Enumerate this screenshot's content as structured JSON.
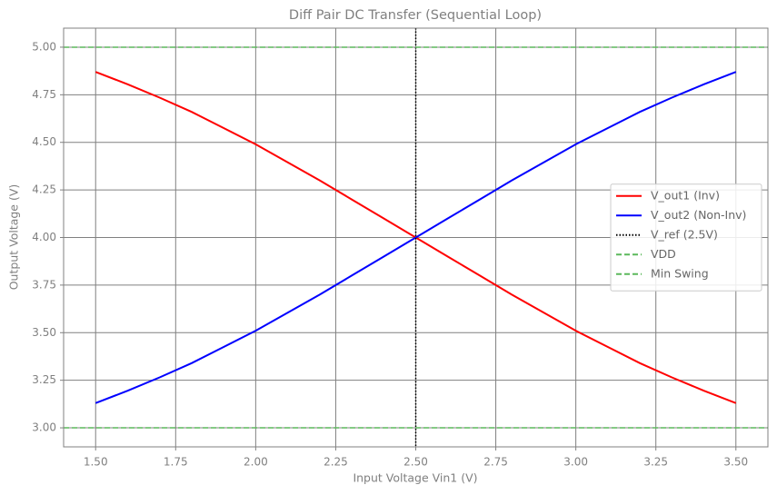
{
  "chart_data": {
    "type": "line",
    "title": "Diff Pair DC Transfer (Sequential Loop)",
    "x_label": "Input Voltage Vin1 (V)",
    "y_label": "Output Voltage (V)",
    "x": [
      1.5,
      1.6,
      1.7,
      1.8,
      1.9,
      2.0,
      2.1,
      2.2,
      2.3,
      2.4,
      2.5,
      2.6,
      2.7,
      2.8,
      2.9,
      3.0,
      3.1,
      3.2,
      3.3,
      3.4,
      3.5
    ],
    "series": [
      {
        "name": "V_out1 (Inv)",
        "color": "#ff0000",
        "values": [
          4.87,
          4.805,
          4.735,
          4.66,
          4.575,
          4.49,
          4.395,
          4.3,
          4.2,
          4.1,
          4.0,
          3.9,
          3.8,
          3.7,
          3.605,
          3.51,
          3.425,
          3.34,
          3.265,
          3.195,
          3.13
        ]
      },
      {
        "name": "V_out2 (Non-Inv)",
        "color": "#0000ff",
        "values": [
          3.13,
          3.195,
          3.265,
          3.34,
          3.425,
          3.51,
          3.605,
          3.7,
          3.8,
          3.9,
          4.0,
          4.1,
          4.2,
          4.3,
          4.395,
          4.49,
          4.575,
          4.66,
          4.735,
          4.805,
          4.87
        ]
      }
    ],
    "reference_lines": [
      {
        "name": "V_ref (2.5V)",
        "color": "#000000",
        "style": "dotted",
        "axis": "x",
        "value": 2.5
      },
      {
        "name": "VDD",
        "color": "#5cb85c",
        "style": "dashed",
        "axis": "y",
        "value": 5.0
      },
      {
        "name": "Min Swing",
        "color": "#5cb85c",
        "style": "dashed",
        "axis": "y",
        "value": 3.0
      }
    ],
    "xlim": [
      1.4,
      3.6
    ],
    "ylim": [
      2.9,
      5.1
    ],
    "xticks": [
      {
        "value": 1.5,
        "label": "1.50"
      },
      {
        "value": 1.75,
        "label": "1.75"
      },
      {
        "value": 2.0,
        "label": "2.00"
      },
      {
        "value": 2.25,
        "label": "2.25"
      },
      {
        "value": 2.5,
        "label": "2.50"
      },
      {
        "value": 2.75,
        "label": "2.75"
      },
      {
        "value": 3.0,
        "label": "3.00"
      },
      {
        "value": 3.25,
        "label": "3.25"
      },
      {
        "value": 3.5,
        "label": "3.50"
      }
    ],
    "yticks": [
      {
        "value": 3.0,
        "label": "3.00"
      },
      {
        "value": 3.25,
        "label": "3.25"
      },
      {
        "value": 3.5,
        "label": "3.50"
      },
      {
        "value": 3.75,
        "label": "3.75"
      },
      {
        "value": 4.0,
        "label": "4.00"
      },
      {
        "value": 4.25,
        "label": "4.25"
      },
      {
        "value": 4.5,
        "label": "4.50"
      },
      {
        "value": 4.75,
        "label": "4.75"
      },
      {
        "value": 5.0,
        "label": "5.00"
      }
    ],
    "grid": true,
    "legend": "center right"
  }
}
